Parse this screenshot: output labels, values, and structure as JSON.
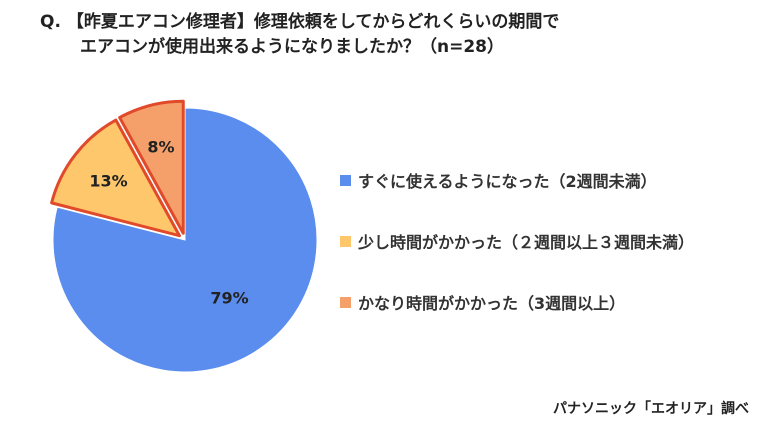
{
  "question": {
    "prefix": "Q.",
    "line1": "【昨夏エアコン修理者】修理依頼をしてからどれくらいの期間で",
    "line2": "エアコンが使用出来るようになりましたか？（n=28）"
  },
  "source": "パナソニック「エオリア」調べ",
  "chart_data": {
    "type": "pie",
    "title": "",
    "unit": "%",
    "n": 28,
    "slices": [
      {
        "label": "すぐに使えるようになった（2週間未満）",
        "value": 79,
        "display": "79%",
        "color": "#5b8def",
        "exploded": false
      },
      {
        "label": "少し時間がかかった（２週間以上３週間未満）",
        "value": 13,
        "display": "13%",
        "color": "#ffc76b",
        "exploded": true
      },
      {
        "label": "かなり時間がかかった（3週間以上）",
        "value": 8,
        "display": "8%",
        "color": "#f5a06b",
        "exploded": true
      }
    ],
    "highlight_outline_color": "#e04a2a",
    "start": "12 o'clock",
    "direction": "clockwise",
    "legend_position": "right"
  }
}
